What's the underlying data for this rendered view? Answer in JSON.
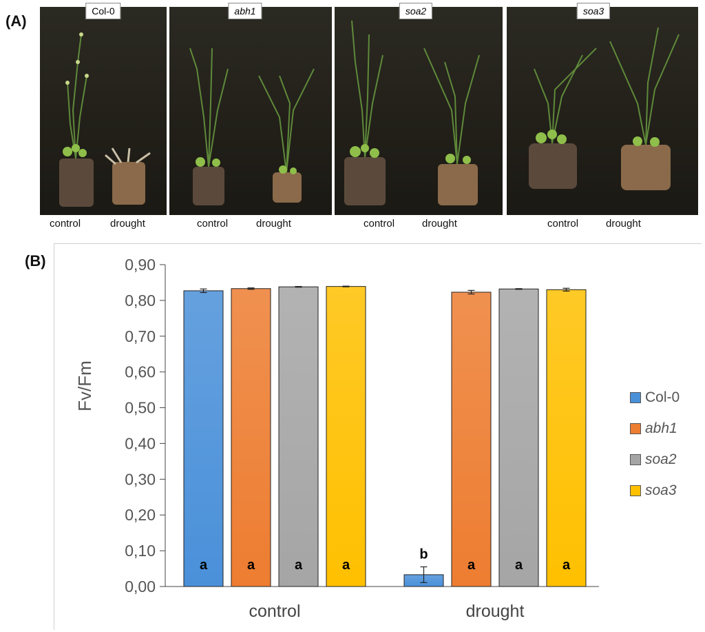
{
  "panels": {
    "a_label": "(A)",
    "b_label": "(B)"
  },
  "photos": [
    {
      "genotype": "Col-0",
      "italic": false,
      "control_label": "control",
      "drought_label": "drought"
    },
    {
      "genotype": "abh1",
      "italic": true,
      "control_label": "control",
      "drought_label": "drought"
    },
    {
      "genotype": "soa2",
      "italic": true,
      "control_label": "control",
      "drought_label": "drought"
    },
    {
      "genotype": "soa3",
      "italic": true,
      "control_label": "control",
      "drought_label": "drought"
    }
  ],
  "chart_data": {
    "type": "bar",
    "title": "",
    "xlabel": "",
    "ylabel": "Fv/Fm",
    "ylim": [
      0,
      0.9
    ],
    "yticks": [
      "0,00",
      "0,10",
      "0,20",
      "0,30",
      "0,40",
      "0,50",
      "0,60",
      "0,70",
      "0,80",
      "0,90"
    ],
    "categories": [
      "control",
      "drought"
    ],
    "series": [
      {
        "name": "Col-0",
        "italic": false,
        "color": "#4a90d9",
        "values": [
          0.827,
          0.033
        ],
        "errors": [
          0.005,
          0.022
        ],
        "letters": [
          "a",
          "b"
        ]
      },
      {
        "name": "abh1",
        "italic": true,
        "color": "#ed7d31",
        "values": [
          0.833,
          0.823
        ],
        "errors": [
          0.002,
          0.005
        ],
        "letters": [
          "a",
          "a"
        ]
      },
      {
        "name": "soa2",
        "italic": true,
        "color": "#a5a5a5",
        "values": [
          0.838,
          0.832
        ],
        "errors": [
          0.001,
          0.001
        ],
        "letters": [
          "a",
          "a"
        ]
      },
      {
        "name": "soa3",
        "italic": true,
        "color": "#ffc000",
        "values": [
          0.839,
          0.83
        ],
        "errors": [
          0.001,
          0.004
        ],
        "letters": [
          "a",
          "a"
        ]
      }
    ],
    "legend_position": "right",
    "grid": false
  }
}
